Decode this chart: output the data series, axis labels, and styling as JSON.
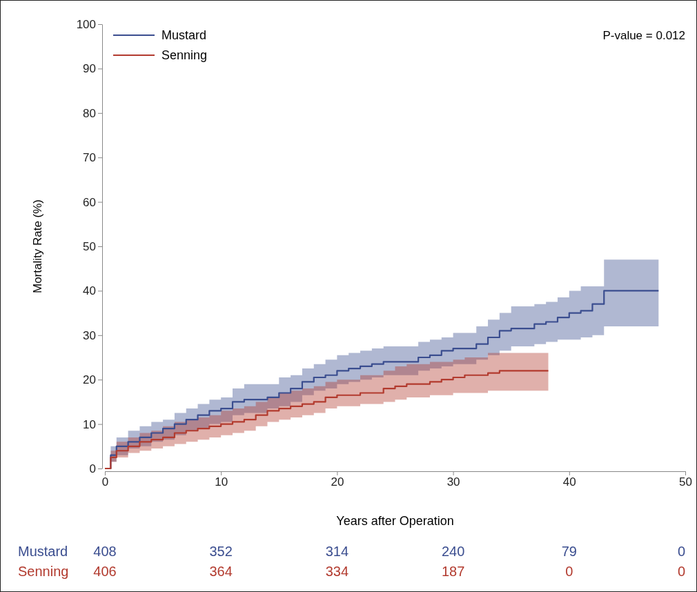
{
  "chart_data": {
    "type": "step",
    "xlabel": "Years after Operation",
    "ylabel": "Mortality Rate (%)",
    "xlim": [
      0,
      50
    ],
    "xticks": [
      0,
      10,
      20,
      30,
      40,
      50
    ],
    "ylim": [
      0,
      100
    ],
    "yticks": [
      0,
      10,
      20,
      30,
      40,
      50,
      60,
      70,
      80,
      90,
      100
    ],
    "legend": "top left",
    "grid": false,
    "series": [
      {
        "name": "Mustard",
        "color": "#3a4d8f",
        "x": [
          0,
          0.5,
          1,
          2,
          3,
          4,
          5,
          6,
          7,
          8,
          9,
          10,
          11,
          12,
          14,
          15,
          16,
          17,
          18,
          19,
          20,
          21,
          22,
          23,
          24,
          27,
          28,
          29,
          30,
          32,
          33,
          34,
          35,
          37,
          38,
          39,
          40,
          41,
          42,
          43,
          47.7
        ],
        "values": [
          0,
          3,
          5,
          6,
          7,
          8,
          9,
          10,
          11,
          12,
          13,
          13.5,
          15,
          15.5,
          16,
          17,
          18,
          19.5,
          20.5,
          21,
          22,
          22.5,
          23,
          23.5,
          24,
          25,
          25.5,
          26.5,
          27,
          28,
          29.5,
          31,
          31.5,
          32.5,
          33,
          34,
          35,
          35.5,
          37,
          40,
          40
        ],
        "lower": [
          0,
          1.5,
          3,
          4.5,
          5,
          6,
          6.5,
          7.5,
          8.5,
          9,
          10,
          10.5,
          12,
          12.5,
          13.5,
          14,
          15,
          16.5,
          17.5,
          18,
          19,
          19.5,
          20,
          20.5,
          21,
          22,
          22.5,
          23,
          23.5,
          24.5,
          25.5,
          26.5,
          27.5,
          28,
          28.5,
          29,
          29,
          29.5,
          30,
          32,
          32
        ],
        "upper": [
          0,
          5,
          7,
          8.5,
          9.5,
          10.5,
          11,
          12.5,
          13.5,
          14.5,
          15.5,
          16,
          18,
          19,
          19,
          20.5,
          21,
          22.5,
          23.5,
          24.5,
          25.5,
          26,
          26.5,
          27,
          27.5,
          28.5,
          29,
          29.5,
          30.5,
          32,
          33.5,
          35,
          36.5,
          37,
          37.5,
          38.5,
          40,
          41,
          41,
          47,
          47
        ]
      },
      {
        "name": "Senning",
        "color": "#b23a2e",
        "x": [
          0,
          0.5,
          1,
          2,
          3,
          4,
          5,
          6,
          7,
          8,
          9,
          10,
          11,
          12,
          13,
          14,
          15,
          16,
          17,
          18,
          19,
          20,
          22,
          24,
          25,
          26,
          28,
          29,
          30,
          31,
          33,
          34,
          38.2
        ],
        "values": [
          0,
          2.5,
          4,
          5,
          6,
          6.5,
          7,
          8,
          8.5,
          9,
          9.5,
          10,
          10.5,
          11,
          12,
          13,
          13.5,
          14,
          14.5,
          15,
          16,
          16.5,
          17,
          18,
          18.5,
          19,
          19.5,
          20,
          20.5,
          21,
          21.5,
          22,
          22
        ],
        "lower": [
          0,
          1.5,
          2.5,
          3.5,
          4,
          4.5,
          5,
          5.5,
          6,
          6.5,
          7,
          7.5,
          8,
          8.5,
          9.5,
          10.5,
          11,
          11.5,
          12,
          12.5,
          13.5,
          14,
          14.5,
          15,
          15.5,
          16,
          16.5,
          16.5,
          17,
          17,
          17.5,
          17.5,
          17.5
        ],
        "upper": [
          0,
          4,
          6,
          7,
          8,
          8.5,
          9.5,
          10.5,
          11,
          11.5,
          12,
          13,
          13.5,
          14,
          15,
          16,
          17,
          17.5,
          18,
          18.5,
          19.5,
          20,
          21,
          22,
          23,
          23.5,
          24,
          24,
          24.5,
          25,
          26,
          26,
          26
        ]
      }
    ],
    "annotations": [
      "P-value = 0.012",
      "Mustard",
      "408",
      "352",
      "314",
      "240",
      "79",
      "0",
      "Senning",
      "406",
      "364",
      "334",
      "187",
      "0",
      "0"
    ]
  }
}
